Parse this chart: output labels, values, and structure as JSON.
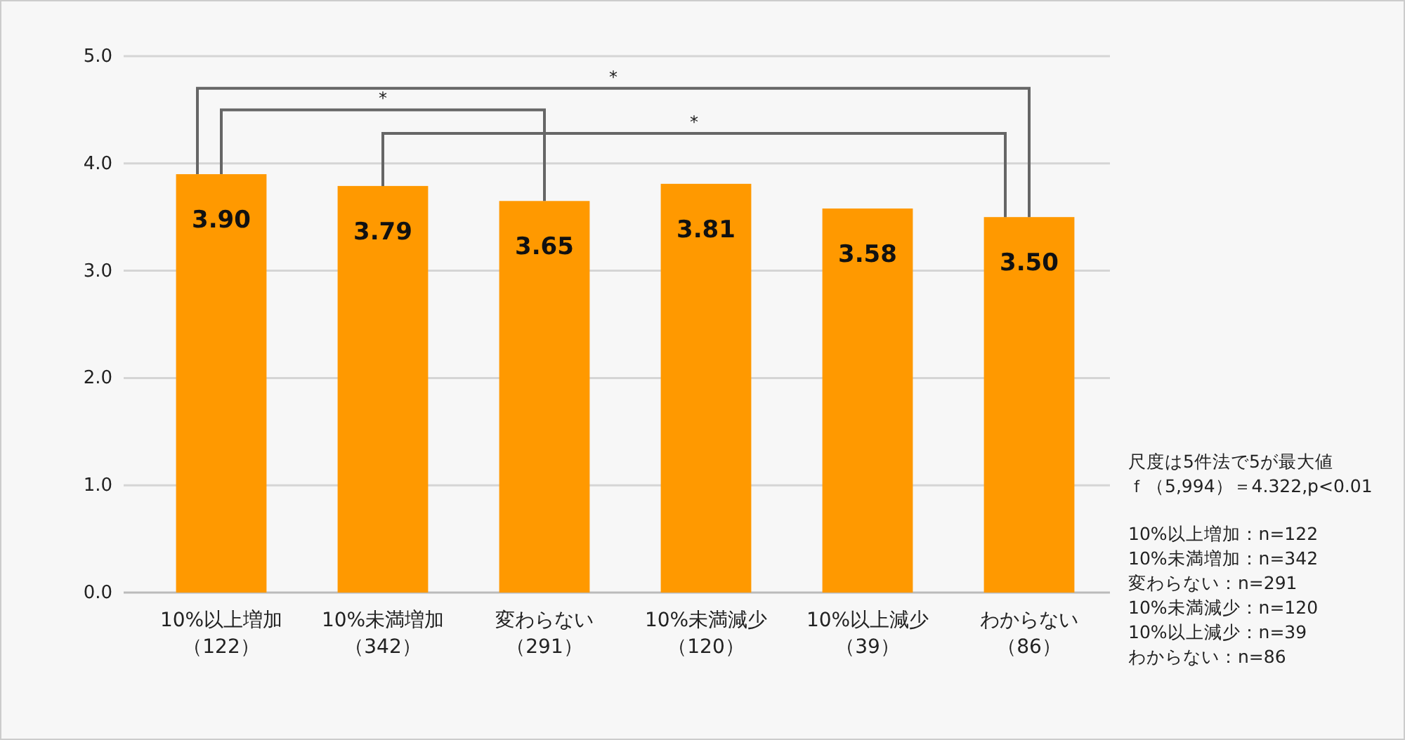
{
  "chart_data": {
    "type": "bar",
    "categories": [
      "10%以上増加（122）",
      "10%未満増加（342）",
      "変わらない（291）",
      "10%未満減少（120）",
      "10%以上減少（39）",
      "わからない（86）"
    ],
    "values": [
      3.9,
      3.79,
      3.65,
      3.81,
      3.58,
      3.5
    ],
    "value_labels": [
      "3.90",
      "3.79",
      "3.65",
      "3.81",
      "3.58",
      "3.50"
    ],
    "color": "#ff9900",
    "ylim": [
      0,
      5
    ],
    "yticks": [
      {
        "value": 0,
        "label": "0.0"
      },
      {
        "value": 1,
        "label": "1.0"
      },
      {
        "value": 2,
        "label": "2.0"
      },
      {
        "value": 3,
        "label": "3.0"
      },
      {
        "value": 4,
        "label": "4.0"
      },
      {
        "value": 5,
        "label": "5.0"
      }
    ],
    "grid": "y",
    "annotations": [
      "*",
      "*",
      "*",
      "尺度は5件法で5が最大値",
      "ｆ（5,994）＝4.322,p<0.01",
      "10%以上増加：n=122",
      "10%未満増加：n=342",
      "変わらない：n=291",
      "10%未満減少：n=120",
      "10%以上減少：n=39",
      "わからない：n=86"
    ]
  }
}
